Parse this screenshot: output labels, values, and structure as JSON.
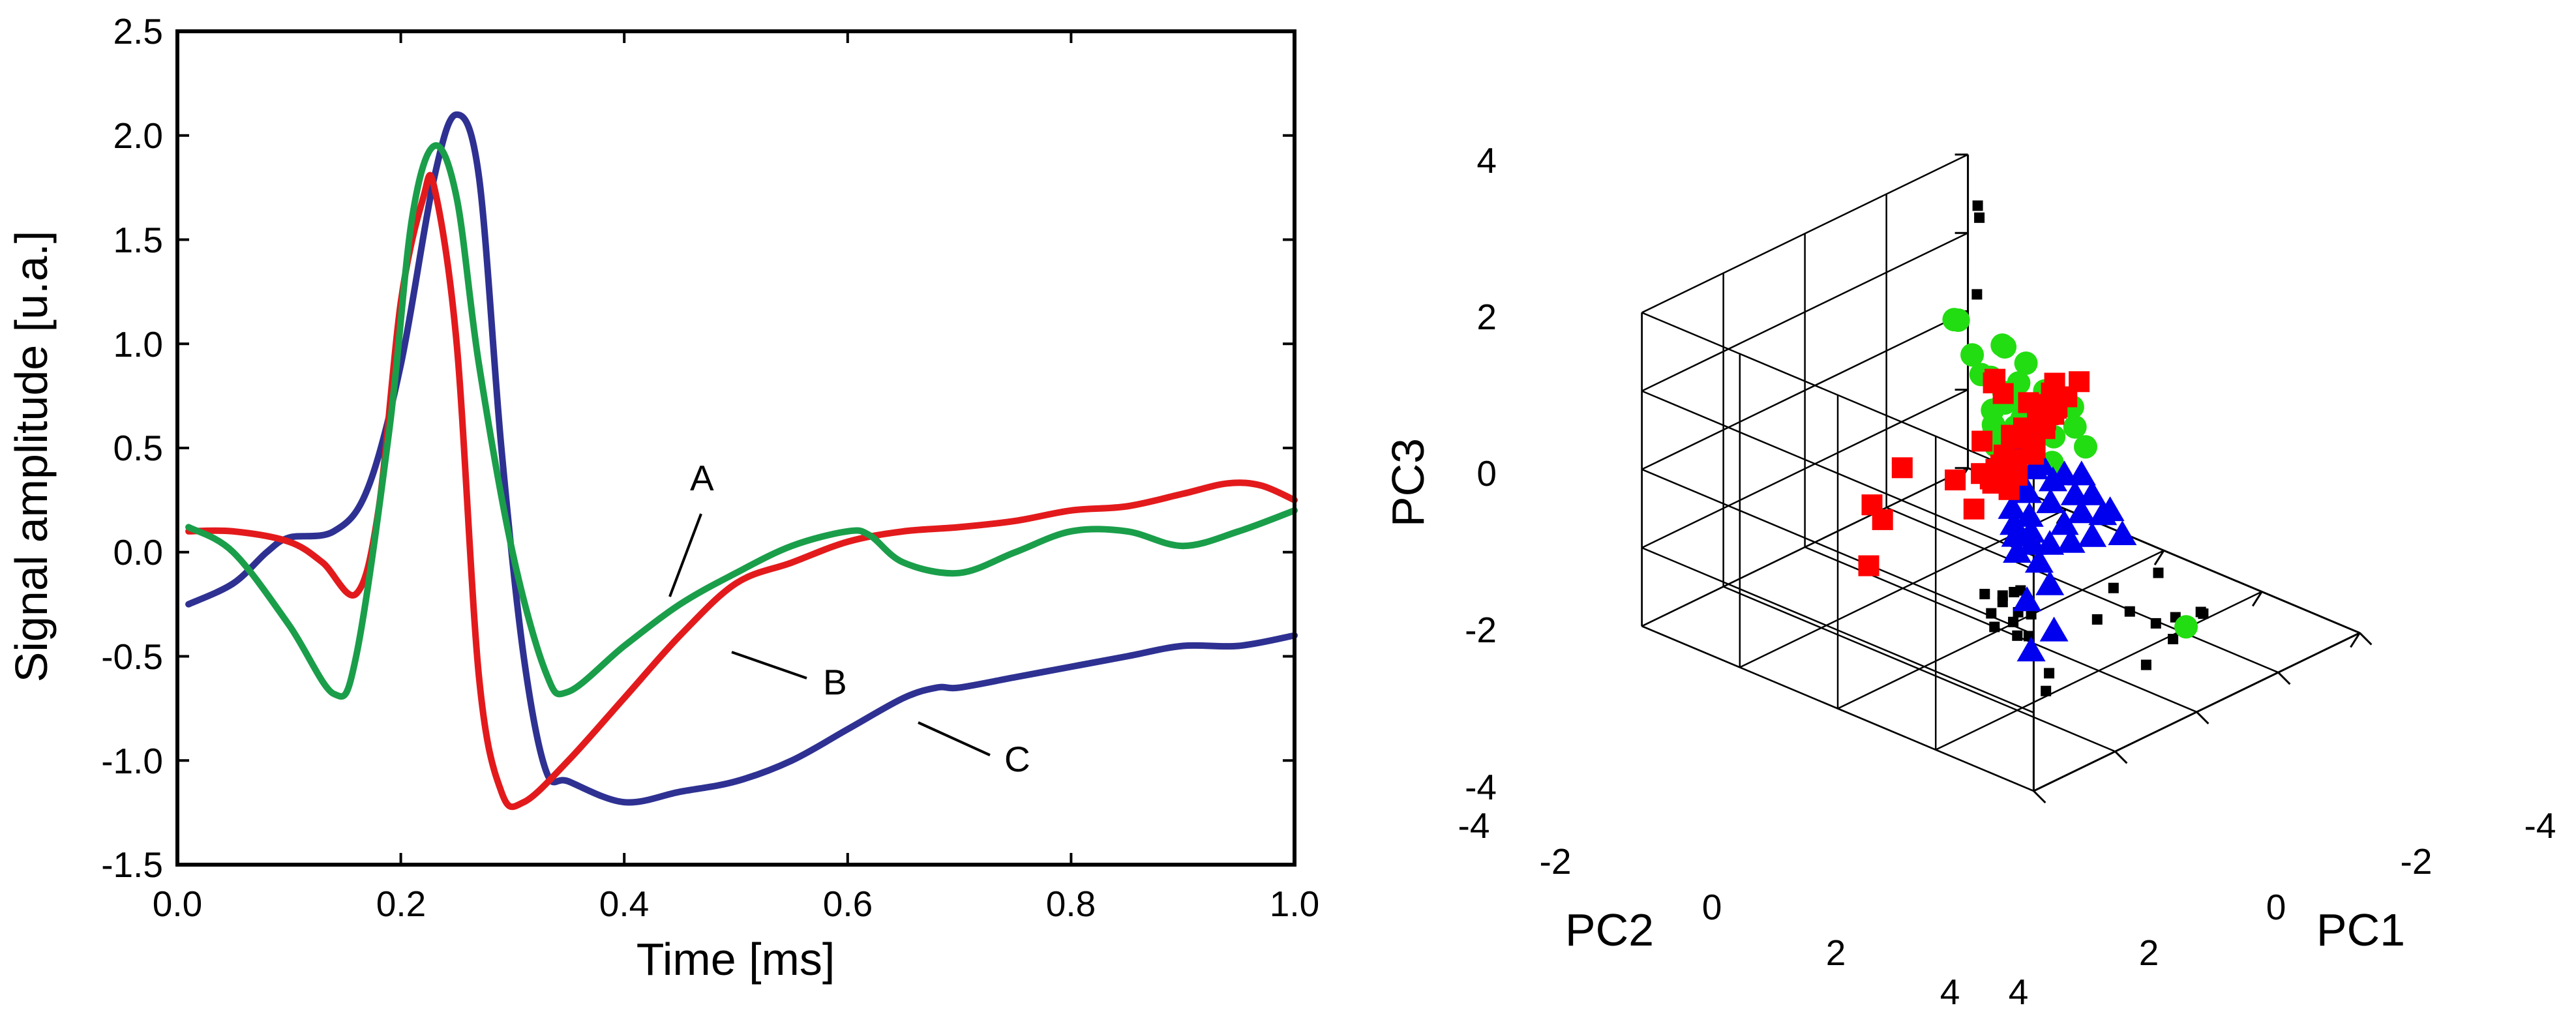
{
  "chart_data": [
    {
      "type": "line",
      "title": "",
      "xlabel": "Time [ms]",
      "ylabel": "Signal amplitude [u.a.]",
      "xlim": [
        0.0,
        1.0
      ],
      "ylim": [
        -1.5,
        2.5
      ],
      "xticks": [
        "0.0",
        "0.2",
        "0.4",
        "0.6",
        "0.8",
        "1.0"
      ],
      "yticks": [
        "2.5",
        "2.0",
        "1.5",
        "1.0",
        "0.5",
        "0.0",
        "-0.5",
        "-1.0",
        "-1.5"
      ],
      "grid": false,
      "series": [
        {
          "name": "A",
          "color": "#1a9e4a",
          "x": [
            0.01,
            0.05,
            0.1,
            0.14,
            0.16,
            0.19,
            0.21,
            0.23,
            0.25,
            0.27,
            0.3,
            0.33,
            0.35,
            0.4,
            0.45,
            0.5,
            0.55,
            0.6,
            0.62,
            0.65,
            0.7,
            0.75,
            0.8,
            0.85,
            0.9,
            0.95,
            1.0
          ],
          "y": [
            0.12,
            0.0,
            -0.35,
            -0.68,
            -0.5,
            0.6,
            1.6,
            1.95,
            1.7,
            0.9,
            0.0,
            -0.58,
            -0.67,
            -0.45,
            -0.25,
            -0.1,
            0.03,
            0.1,
            0.08,
            -0.05,
            -0.1,
            0.0,
            0.1,
            0.1,
            0.03,
            0.1,
            0.2
          ]
        },
        {
          "name": "B",
          "color": "#e31a1c",
          "x": [
            0.01,
            0.05,
            0.1,
            0.13,
            0.16,
            0.18,
            0.2,
            0.22,
            0.23,
            0.25,
            0.27,
            0.29,
            0.31,
            0.35,
            0.4,
            0.45,
            0.5,
            0.55,
            0.6,
            0.65,
            0.7,
            0.75,
            0.8,
            0.85,
            0.9,
            0.94,
            0.97,
            1.0
          ],
          "y": [
            0.1,
            0.1,
            0.05,
            -0.05,
            -0.2,
            0.2,
            1.2,
            1.7,
            1.75,
            1.0,
            -0.6,
            -1.15,
            -1.2,
            -1.0,
            -0.7,
            -0.4,
            -0.15,
            -0.05,
            0.05,
            0.1,
            0.12,
            0.15,
            0.2,
            0.22,
            0.28,
            0.33,
            0.32,
            0.25
          ]
        },
        {
          "name": "C",
          "color": "#2e3192",
          "x": [
            0.01,
            0.05,
            0.08,
            0.1,
            0.14,
            0.17,
            0.2,
            0.23,
            0.25,
            0.27,
            0.29,
            0.31,
            0.33,
            0.35,
            0.4,
            0.45,
            0.5,
            0.55,
            0.6,
            0.65,
            0.68,
            0.7,
            0.75,
            0.8,
            0.85,
            0.9,
            0.95,
            1.0
          ],
          "y": [
            -0.25,
            -0.15,
            0.0,
            0.07,
            0.1,
            0.3,
            0.9,
            1.8,
            2.1,
            1.8,
            0.5,
            -0.5,
            -1.05,
            -1.1,
            -1.2,
            -1.15,
            -1.1,
            -1.0,
            -0.85,
            -0.7,
            -0.65,
            -0.65,
            -0.6,
            -0.55,
            -0.5,
            -0.45,
            -0.45,
            -0.4
          ]
        }
      ],
      "annotations": [
        {
          "text": "A",
          "x": 0.47,
          "y": 0.28
        },
        {
          "text": "B",
          "x": 0.59,
          "y": -0.6
        },
        {
          "text": "C",
          "x": 0.76,
          "y": -0.98
        }
      ]
    },
    {
      "type": "scatter3d",
      "title": "",
      "xlabel": "PC1",
      "ylabel": "PC2",
      "zlabel": "PC3",
      "xlim": [
        -4,
        4
      ],
      "ylim": [
        -4,
        4
      ],
      "zlim": [
        -4,
        4
      ],
      "pc1_ticks": [
        "-4",
        "-2",
        "0",
        "2",
        "4"
      ],
      "pc2_ticks": [
        "-4",
        "-2",
        "0",
        "2",
        "4"
      ],
      "pc3_ticks": [
        "4",
        "2",
        "0",
        "-2",
        "-4"
      ],
      "grid": true,
      "series": [
        {
          "name": "red squares",
          "color": "#ff0000",
          "marker": "square",
          "points": [
            [
              -0.6,
              0.6,
              2.3
            ],
            [
              -0.4,
              0.7,
              2.2
            ],
            [
              -0.2,
              0.8,
              1.8
            ],
            [
              -0.5,
              0.4,
              1.7
            ],
            [
              -0.3,
              0.5,
              1.5
            ],
            [
              -0.1,
              0.6,
              1.3
            ],
            [
              0.0,
              0.7,
              1.0
            ],
            [
              -0.2,
              0.3,
              1.2
            ],
            [
              -0.4,
              0.2,
              0.9
            ],
            [
              -0.6,
              0.1,
              0.7
            ],
            [
              -0.3,
              0.0,
              0.8
            ],
            [
              0.1,
              0.4,
              0.6
            ],
            [
              0.2,
              0.5,
              0.3
            ],
            [
              -0.1,
              0.2,
              0.4
            ],
            [
              0.0,
              0.0,
              0.2
            ],
            [
              0.3,
              0.3,
              0.5
            ],
            [
              0.4,
              0.6,
              0.8
            ],
            [
              0.2,
              0.8,
              1.1
            ],
            [
              -0.7,
              0.5,
              1.4
            ],
            [
              -0.8,
              0.2,
              1.0
            ],
            [
              -0.5,
              -0.2,
              0.6
            ],
            [
              -0.2,
              -0.1,
              0.3
            ],
            [
              0.1,
              0.1,
              0.1
            ],
            [
              0.5,
              0.2,
              0.2
            ],
            [
              0.6,
              0.4,
              0.6
            ],
            [
              0.3,
              0.7,
              1.4
            ],
            [
              0.0,
              0.9,
              1.6
            ],
            [
              -0.9,
              0.6,
              1.8
            ],
            [
              -1.0,
              0.3,
              1.3
            ],
            [
              -0.2,
              0.4,
              1.9
            ],
            [
              0.4,
              1.0,
              1.2
            ],
            [
              0.7,
              0.8,
              0.9
            ],
            [
              0.8,
              0.5,
              0.4
            ],
            [
              -0.3,
              0.9,
              2.0
            ],
            [
              -1.1,
              0.0,
              0.8
            ],
            [
              2.2,
              0.9,
              1.4
            ],
            [
              2.9,
              0.4,
              1.8
            ],
            [
              3.4,
              0.2,
              1.0
            ],
            [
              3.6,
              0.3,
              -0.4
            ],
            [
              2.3,
              -0.5,
              -0.3
            ],
            [
              1.5,
              0.7,
              0.2
            ],
            [
              1.0,
              1.0,
              0.6
            ],
            [
              -0.6,
              1.1,
              2.6
            ],
            [
              -1.3,
              -1.2,
              1.1
            ],
            [
              -1.5,
              -1.4,
              0.8
            ],
            [
              -0.9,
              -0.7,
              1.2
            ],
            [
              0.1,
              -0.3,
              0.7
            ],
            [
              0.5,
              0.9,
              1.8
            ],
            [
              1.2,
              0.6,
              0.9
            ]
          ]
        },
        {
          "name": "green circles",
          "color": "#22dd11",
          "marker": "circle",
          "points": [
            [
              -2.5,
              -2.0,
              0.9
            ],
            [
              -2.2,
              -1.8,
              1.2
            ],
            [
              -2.3,
              -1.4,
              0.9
            ],
            [
              -2.0,
              -1.3,
              0.6
            ],
            [
              -1.8,
              -1.1,
              0.3
            ],
            [
              -1.6,
              -0.9,
              0.1
            ],
            [
              -1.7,
              -0.6,
              -0.1
            ],
            [
              -1.4,
              -0.8,
              -0.2
            ],
            [
              -1.2,
              -0.7,
              0.2
            ],
            [
              -1.5,
              -1.2,
              0.4
            ],
            [
              -2.1,
              -0.9,
              -0.2
            ],
            [
              -1.9,
              -0.5,
              -0.3
            ],
            [
              -1.3,
              -1.0,
              0.6
            ],
            [
              -1.0,
              -0.6,
              0.0
            ],
            [
              -1.1,
              -0.3,
              -0.4
            ],
            [
              -1.6,
              -1.5,
              0.0
            ],
            [
              -2.0,
              -1.6,
              0.2
            ],
            [
              -1.4,
              -1.3,
              -0.3
            ],
            [
              -1.2,
              -1.1,
              -0.5
            ],
            [
              -0.9,
              -0.9,
              0.3
            ],
            [
              -0.8,
              -0.7,
              -0.1
            ],
            [
              -2.4,
              -1.1,
              0.3
            ],
            [
              -2.6,
              -0.7,
              0.0
            ],
            [
              -2.3,
              -0.4,
              -0.2
            ],
            [
              -1.8,
              -1.9,
              0.6
            ],
            [
              -3.0,
              -2.7,
              -0.5
            ],
            [
              -2.8,
              -3.2,
              0.8
            ],
            [
              -3.3,
              -3.7,
              0.3
            ],
            [
              -0.7,
              3.2,
              -2.6
            ],
            [
              -1.5,
              -0.2,
              -0.6
            ],
            [
              -2.2,
              -0.1,
              -0.5
            ],
            [
              -1.7,
              -2.0,
              1.1
            ]
          ]
        },
        {
          "name": "blue triangles",
          "color": "#0000ee",
          "marker": "triangle",
          "points": [
            [
              -0.8,
              0.4,
              -0.4
            ],
            [
              -0.5,
              0.6,
              -0.7
            ],
            [
              -0.3,
              0.3,
              -0.5
            ],
            [
              -0.1,
              0.5,
              -0.9
            ],
            [
              0.1,
              0.7,
              -1.1
            ],
            [
              -0.6,
              0.8,
              -1.2
            ],
            [
              -0.9,
              0.9,
              -1.0
            ],
            [
              -1.1,
              0.6,
              -0.8
            ],
            [
              -1.2,
              0.3,
              -0.5
            ],
            [
              -0.7,
              0.1,
              -0.2
            ],
            [
              -0.4,
              0.0,
              -0.1
            ],
            [
              -0.2,
              0.2,
              -0.3
            ],
            [
              0.2,
              0.4,
              -0.6
            ],
            [
              0.4,
              0.6,
              -0.8
            ],
            [
              0.3,
              0.9,
              -1.2
            ],
            [
              0.0,
              1.0,
              -1.3
            ],
            [
              -0.4,
              1.1,
              -1.4
            ],
            [
              -0.8,
              1.2,
              -1.4
            ],
            [
              -1.3,
              1.0,
              -1.2
            ],
            [
              -1.4,
              0.7,
              -0.9
            ],
            [
              -1.5,
              0.4,
              -0.6
            ],
            [
              -1.0,
              0.0,
              -0.3
            ],
            [
              0.6,
              0.8,
              -0.9
            ],
            [
              0.8,
              1.0,
              -1.1
            ],
            [
              0.5,
              1.2,
              -1.4
            ],
            [
              1.2,
              2.0,
              -1.2
            ],
            [
              2.0,
              2.2,
              -1.1
            ],
            [
              2.3,
              3.0,
              -1.3
            ],
            [
              3.1,
              3.2,
              -1.3
            ],
            [
              -0.6,
              -0.2,
              0.4
            ],
            [
              -1.6,
              0.9,
              -1.3
            ],
            [
              -1.3,
              1.4,
              -1.5
            ]
          ]
        },
        {
          "name": "black squares",
          "color": "#000000",
          "marker": "small-square",
          "points": [
            [
              -4.0,
              -3.8,
              2.8
            ],
            [
              -3.8,
              -3.6,
              2.7
            ],
            [
              -3.5,
              -3.4,
              1.0
            ],
            [
              -0.1,
              4.0,
              -1.5
            ],
            [
              -0.4,
              3.8,
              -1.8
            ],
            [
              1.2,
              3.3,
              -0.6
            ],
            [
              1.6,
              3.3,
              -1.2
            ],
            [
              3.6,
              3.4,
              0.6
            ],
            [
              3.8,
              3.2,
              0.3
            ],
            [
              3.9,
              3.6,
              0.3
            ],
            [
              4.0,
              3.0,
              0.5
            ],
            [
              3.4,
              3.1,
              0.3
            ],
            [
              3.6,
              2.8,
              -0.3
            ],
            [
              3.7,
              3.7,
              0.2
            ],
            [
              3.2,
              2.7,
              -0.1
            ],
            [
              3.9,
              3.5,
              0.0
            ],
            [
              4.0,
              3.9,
              -0.1
            ],
            [
              3.4,
              2.7,
              -0.8
            ],
            [
              3.8,
              3.5,
              -0.4
            ],
            [
              3.5,
              3.9,
              -1.3
            ],
            [
              3.7,
              4.0,
              -1.6
            ],
            [
              1.0,
              3.8,
              -2.4
            ],
            [
              0.4,
              3.5,
              -1.8
            ],
            [
              -0.2,
              3.4,
              -2.0
            ],
            [
              0.1,
              3.6,
              -2.3
            ],
            [
              -1.1,
              2.3,
              -1.9
            ],
            [
              0.8,
              3.3,
              -1.4
            ]
          ]
        }
      ]
    }
  ]
}
